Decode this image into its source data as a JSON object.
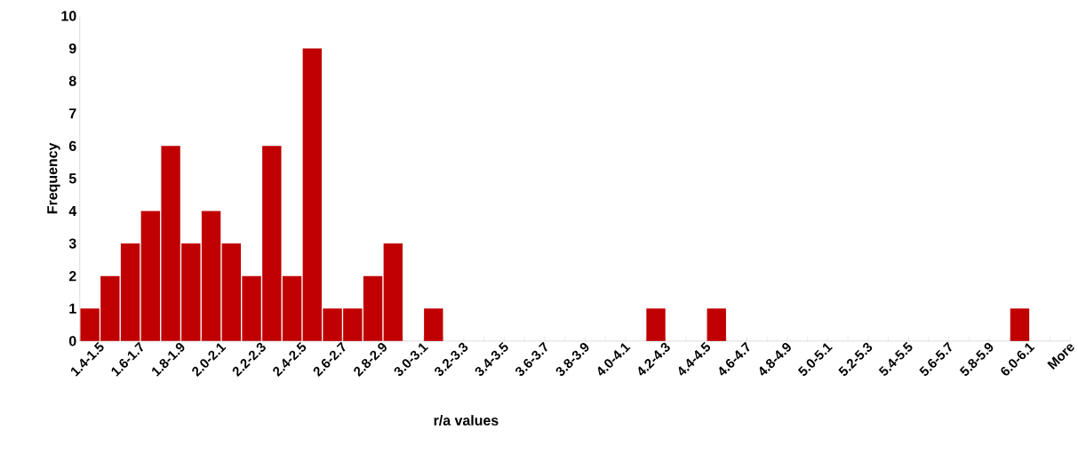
{
  "chart_data": {
    "type": "bar",
    "xlabel": "r/a values",
    "ylabel": "Frequency",
    "categories": [
      "1.4-1.5",
      null,
      "1.6-1.7",
      null,
      "1.8-1.9",
      null,
      "2.0-2.1",
      null,
      "2.2-2.3",
      null,
      "2.4-2.5",
      null,
      "2.6-2.7",
      null,
      "2.8-2.9",
      null,
      "3.0-3.1",
      null,
      "3.2-3.3",
      null,
      "3.4-3.5",
      null,
      "3.6-3.7",
      null,
      "3.8-3.9",
      null,
      "4.0-4.1",
      null,
      "4.2-4.3",
      null,
      "4.4-4.5",
      null,
      "4.6-4.7",
      null,
      "4.8-4.9",
      null,
      "5.0-5.1",
      null,
      "5.2-5.3",
      null,
      "5.4-5.5",
      null,
      "5.6-5.7",
      null,
      "5.8-5.9",
      null,
      "6.0-6.1",
      null,
      "More"
    ],
    "values": [
      1,
      2,
      3,
      4,
      6,
      3,
      4,
      3,
      2,
      6,
      2,
      9,
      1,
      1,
      2,
      3,
      0,
      1,
      0,
      0,
      0,
      0,
      0,
      0,
      0,
      0,
      0,
      0,
      1,
      0,
      0,
      1,
      0,
      0,
      0,
      0,
      0,
      0,
      0,
      0,
      0,
      0,
      0,
      0,
      0,
      0,
      1,
      0,
      0
    ],
    "color": "#c00000",
    "ylim": [
      0,
      10
    ],
    "yticks": [
      0,
      1,
      2,
      3,
      4,
      5,
      6,
      7,
      8,
      9,
      10
    ]
  }
}
